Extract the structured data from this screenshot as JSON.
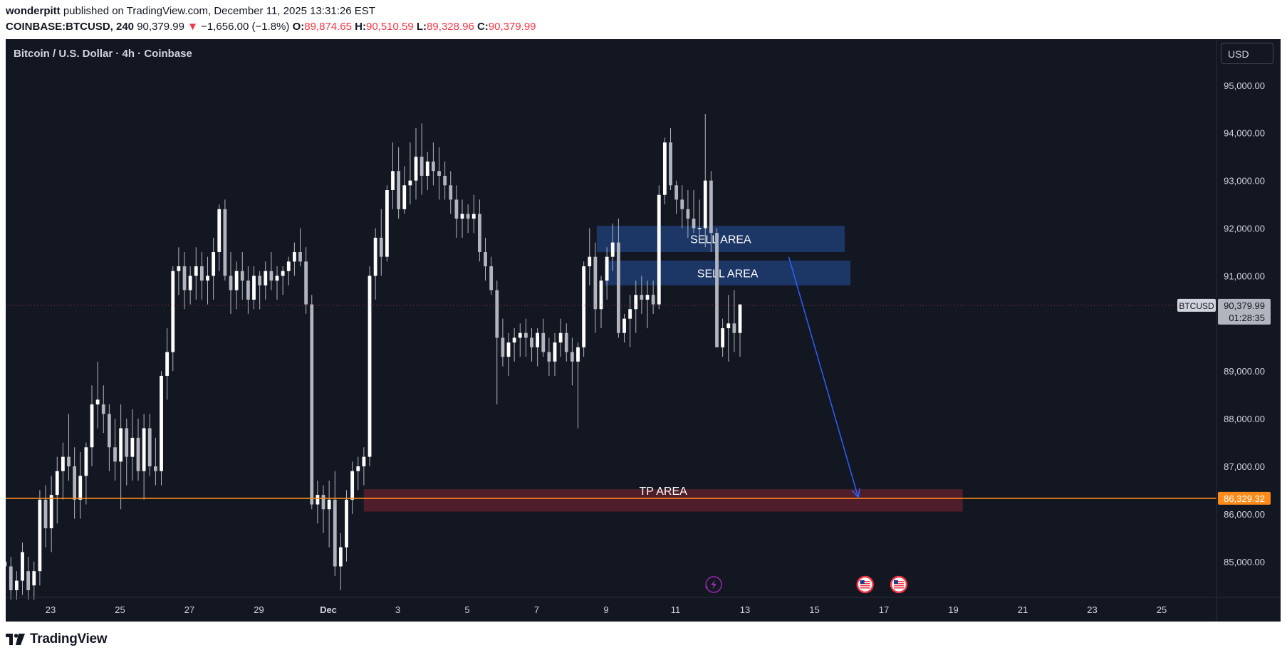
{
  "header": {
    "author": "wonderpitt",
    "published_text": "published on TradingView.com, December 11, 2025 13:31:26 EST",
    "symbol": "COINBASE:BTCUSD, 240",
    "last": "90,379.99",
    "change": "−1,656.00 (−1.8%)",
    "open_label": "O:",
    "open": "89,874.65",
    "high_label": "H:",
    "high": "90,510.59",
    "low_label": "L:",
    "low": "89,328.96",
    "close_label": "C:",
    "close": "90,379.99"
  },
  "chart_title": "Bitcoin / U.S. Dollar · 4h · Coinbase",
  "currency_button": "USD",
  "footer": {
    "logo_text": "TradingView"
  },
  "colors": {
    "background": "#131722",
    "candle": "#ffffff",
    "wick": "#b2b5be",
    "support": "#ff8c1a",
    "sell_zone": "#1e3a6e",
    "tp_zone": "#5c1f2b",
    "arrow": "#2962ff",
    "down": "#f23645"
  },
  "chart_data": {
    "type": "candlestick",
    "title": "Bitcoin / U.S. Dollar · 4h · Coinbase",
    "ylim": [
      84250,
      95700
    ],
    "y_ticks": [
      "95,000.00",
      "94,000.00",
      "93,000.00",
      "92,000.00",
      "91,000.00",
      "89,000.00",
      "88,000.00",
      "87,000.00",
      "86,000.00",
      "85,000.00"
    ],
    "y_tick_values": [
      95000,
      94000,
      93000,
      92000,
      91000,
      89000,
      88000,
      87000,
      86000,
      85000
    ],
    "x_ticks": [
      "23",
      "25",
      "27",
      "29",
      "Dec",
      "3",
      "5",
      "7",
      "9",
      "11",
      "13",
      "15",
      "17",
      "19",
      "21",
      "23",
      "25"
    ],
    "x_tick_days": [
      23,
      25,
      27,
      29,
      31,
      33,
      35,
      37,
      39,
      41,
      43,
      45,
      47,
      49,
      51,
      53,
      55
    ],
    "x_start_day": 21.44,
    "bars_per_day": 6,
    "ohlc": [
      [
        84400,
        85300,
        84200,
        85000
      ],
      [
        85000,
        85600,
        84500,
        84900
      ],
      [
        84900,
        85100,
        84200,
        84400
      ],
      [
        84400,
        84800,
        84200,
        84600
      ],
      [
        84600,
        85400,
        84300,
        85200
      ],
      [
        84800,
        85100,
        84200,
        84400
      ],
      [
        84500,
        85000,
        84200,
        84800
      ],
      [
        84800,
        86500,
        84500,
        86300
      ],
      [
        86300,
        86600,
        85300,
        85700
      ],
      [
        85700,
        86800,
        85200,
        86400
      ],
      [
        86400,
        87200,
        85800,
        86900
      ],
      [
        86900,
        87500,
        86300,
        87200
      ],
      [
        87200,
        88100,
        86700,
        87000
      ],
      [
        87000,
        87400,
        85900,
        86300
      ],
      [
        86300,
        87300,
        85900,
        86800
      ],
      [
        86800,
        87500,
        86200,
        87400
      ],
      [
        87400,
        88700,
        87000,
        88300
      ],
      [
        88300,
        89200,
        87800,
        88400
      ],
      [
        88300,
        88700,
        87700,
        88100
      ],
      [
        88100,
        88300,
        86900,
        87400
      ],
      [
        87400,
        88000,
        86700,
        87100
      ],
      [
        87100,
        88300,
        86100,
        87800
      ],
      [
        87800,
        88000,
        86600,
        87200
      ],
      [
        87200,
        88200,
        86700,
        87600
      ],
      [
        87600,
        88000,
        86700,
        86900
      ],
      [
        86900,
        88100,
        86300,
        87800
      ],
      [
        87800,
        88100,
        86800,
        87000
      ],
      [
        87000,
        87600,
        86600,
        86900
      ],
      [
        86900,
        89000,
        86600,
        88900
      ],
      [
        88900,
        89900,
        88400,
        89400
      ],
      [
        89400,
        91200,
        89000,
        91100
      ],
      [
        91100,
        91600,
        90600,
        91200
      ],
      [
        91200,
        91500,
        90300,
        90700
      ],
      [
        90700,
        91200,
        90400,
        91000
      ],
      [
        91000,
        91600,
        90500,
        91200
      ],
      [
        91200,
        91500,
        90500,
        90900
      ],
      [
        90900,
        91400,
        90400,
        91000
      ],
      [
        91000,
        91800,
        90500,
        91500
      ],
      [
        91500,
        92500,
        91100,
        92400
      ],
      [
        92400,
        92600,
        90900,
        91000
      ],
      [
        91000,
        91500,
        90200,
        90700
      ],
      [
        90700,
        91300,
        90300,
        91100
      ],
      [
        91100,
        91500,
        90500,
        90900
      ],
      [
        90900,
        91200,
        90200,
        90500
      ],
      [
        90500,
        91200,
        90300,
        91000
      ],
      [
        91000,
        91100,
        90300,
        90800
      ],
      [
        90800,
        91300,
        90500,
        91100
      ],
      [
        91100,
        91500,
        90700,
        90900
      ],
      [
        90900,
        91200,
        90500,
        91000
      ],
      [
        91000,
        91200,
        90600,
        91100
      ],
      [
        91100,
        91400,
        90800,
        91300
      ],
      [
        91300,
        91700,
        91000,
        91500
      ],
      [
        91500,
        92000,
        91200,
        91300
      ],
      [
        91300,
        91600,
        90200,
        90400
      ],
      [
        90400,
        90600,
        86100,
        86200
      ],
      [
        86200,
        86700,
        85800,
        86400
      ],
      [
        86400,
        86600,
        85600,
        86100
      ],
      [
        86100,
        86700,
        85300,
        86300
      ],
      [
        86300,
        86900,
        84700,
        84900
      ],
      [
        84900,
        85600,
        84400,
        85300
      ],
      [
        85300,
        86500,
        85000,
        86300
      ],
      [
        86300,
        87100,
        86000,
        86900
      ],
      [
        86900,
        87200,
        86500,
        87000
      ],
      [
        87000,
        87400,
        86600,
        87200
      ],
      [
        87200,
        91200,
        87000,
        91000
      ],
      [
        91000,
        92000,
        90500,
        91800
      ],
      [
        91800,
        92400,
        91000,
        91400
      ],
      [
        91400,
        92900,
        91300,
        92800
      ],
      [
        92800,
        93800,
        92400,
        93200
      ],
      [
        93200,
        93700,
        92200,
        92400
      ],
      [
        92400,
        93300,
        92300,
        92900
      ],
      [
        92900,
        93800,
        92500,
        93000
      ],
      [
        93000,
        94100,
        92600,
        93500
      ],
      [
        93500,
        94200,
        92700,
        93100
      ],
      [
        93100,
        93600,
        92800,
        93400
      ],
      [
        93400,
        93800,
        92900,
        93200
      ],
      [
        93200,
        93700,
        92600,
        93100
      ],
      [
        93100,
        93400,
        92600,
        92900
      ],
      [
        92900,
        93200,
        92300,
        92600
      ],
      [
        92600,
        92900,
        91800,
        92200
      ],
      [
        92200,
        92600,
        91800,
        92300
      ],
      [
        92300,
        92500,
        91900,
        92200
      ],
      [
        92200,
        92700,
        91900,
        92300
      ],
      [
        92300,
        92600,
        91300,
        91500
      ],
      [
        91500,
        91800,
        90900,
        91200
      ],
      [
        91200,
        91400,
        90600,
        90700
      ],
      [
        90700,
        90900,
        88300,
        89700
      ],
      [
        89700,
        90100,
        89100,
        89300
      ],
      [
        89300,
        89800,
        88900,
        89600
      ],
      [
        89600,
        89900,
        89200,
        89700
      ],
      [
        89700,
        90000,
        89300,
        89800
      ],
      [
        89800,
        90100,
        89300,
        89700
      ],
      [
        89700,
        89900,
        89200,
        89500
      ],
      [
        89500,
        89900,
        89100,
        89800
      ],
      [
        89800,
        90100,
        89300,
        89400
      ],
      [
        89400,
        89700,
        88900,
        89200
      ],
      [
        89200,
        89800,
        88900,
        89600
      ],
      [
        89600,
        90100,
        89300,
        89800
      ],
      [
        89800,
        90000,
        89200,
        89400
      ],
      [
        89400,
        89700,
        88700,
        89200
      ],
      [
        89200,
        89600,
        87800,
        89500
      ],
      [
        89500,
        91300,
        89300,
        91200
      ],
      [
        91200,
        92000,
        90800,
        91400
      ],
      [
        91400,
        91700,
        89800,
        90300
      ],
      [
        90300,
        91000,
        89900,
        90900
      ],
      [
        90900,
        91600,
        90500,
        91400
      ],
      [
        91400,
        92100,
        91100,
        91700
      ],
      [
        91700,
        92200,
        89700,
        89800
      ],
      [
        89800,
        90200,
        89600,
        90100
      ],
      [
        90100,
        90600,
        89500,
        90300
      ],
      [
        90300,
        90900,
        89800,
        90600
      ],
      [
        90600,
        91000,
        90200,
        90500
      ],
      [
        90500,
        90900,
        89900,
        90600
      ],
      [
        90600,
        90900,
        90200,
        90400
      ],
      [
        90400,
        92900,
        90300,
        92700
      ],
      [
        92700,
        93900,
        92500,
        93800
      ],
      [
        93800,
        94100,
        92800,
        92900
      ],
      [
        92900,
        93000,
        92300,
        92600
      ],
      [
        92600,
        92900,
        92000,
        92400
      ],
      [
        92400,
        92800,
        91800,
        92200
      ],
      [
        92200,
        92800,
        91900,
        92000
      ],
      [
        92000,
        92600,
        91700,
        92000
      ],
      [
        92000,
        94400,
        91600,
        93000
      ],
      [
        93000,
        93200,
        91500,
        91900
      ],
      [
        91900,
        92000,
        89500,
        89500
      ],
      [
        89500,
        90100,
        89300,
        89900
      ],
      [
        89900,
        90600,
        89200,
        90000
      ],
      [
        90000,
        90700,
        89400,
        89800
      ],
      [
        89800,
        90400,
        89300,
        90400
      ]
    ],
    "last_price": 90379.99,
    "last_price_label": "90,379.99",
    "countdown": "01:28:35",
    "symbol_tag": "BTCUSD",
    "support_level": 86329.32,
    "support_label": "86,329.32",
    "annotations": [
      {
        "type": "zone",
        "label": "SELL AREA",
        "x0_day": 38.73,
        "x1_day": 45.87,
        "y_low": 91500,
        "y_high": 92050
      },
      {
        "type": "zone",
        "label": "SELL AREA",
        "x0_day": 38.96,
        "x1_day": 46.04,
        "y_low": 90800,
        "y_high": 91320
      },
      {
        "type": "zone",
        "label": "TP AREA",
        "x0_day": 32.02,
        "x1_day": 49.27,
        "y_low": 86050,
        "y_high": 86520
      },
      {
        "type": "arrow",
        "x0_day": 44.26,
        "y0": 91400,
        "x1_day": 46.26,
        "y1": 86350
      }
    ],
    "event_markers_day": [
      42.1,
      46.46,
      47.43
    ]
  }
}
